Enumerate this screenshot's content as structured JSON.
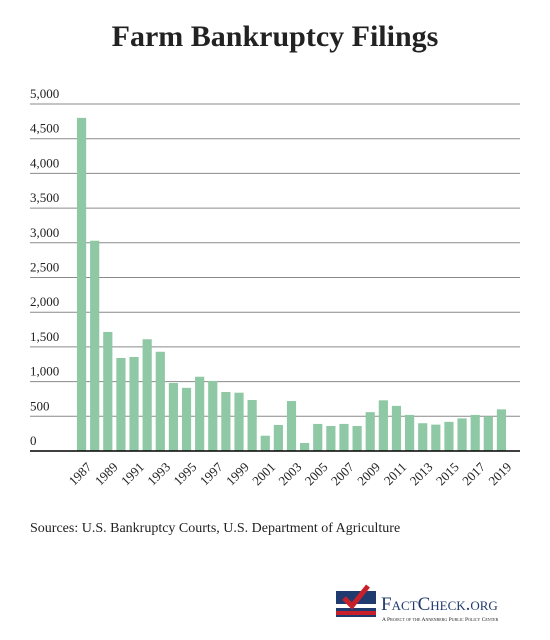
{
  "chart_data": {
    "type": "bar",
    "title": "Farm Bankruptcy Filings",
    "categories": [
      "1987",
      null,
      "1989",
      null,
      "1991",
      null,
      "1993",
      null,
      "1995",
      null,
      "1997",
      null,
      "1999",
      null,
      "2001",
      null,
      "2003",
      null,
      "2005",
      null,
      "2007",
      null,
      "2009",
      null,
      "2011",
      null,
      "2013",
      null,
      "2015",
      null,
      "2017",
      null,
      "2019"
    ],
    "values": [
      4800,
      3030,
      1715,
      1340,
      1355,
      1610,
      1430,
      980,
      910,
      1070,
      1010,
      850,
      840,
      735,
      220,
      375,
      720,
      115,
      390,
      360,
      390,
      360,
      560,
      730,
      650,
      520,
      400,
      380,
      420,
      470,
      520,
      500,
      600
    ],
    "color": "#8fc8a4",
    "ylim": [
      0,
      5000
    ],
    "yticks": [
      0,
      500,
      {
        "value": 1000,
        "label": "1,000"
      },
      {
        "value": 1500,
        "label": "1,500"
      },
      {
        "value": 2000,
        "label": "2,000"
      },
      {
        "value": 2500,
        "label": "2,500"
      },
      {
        "value": 3000,
        "label": "3,000"
      },
      {
        "value": 3500,
        "label": "3,500"
      },
      {
        "value": 4000,
        "label": "4,000"
      },
      {
        "value": 4500,
        "label": "4,500"
      },
      {
        "value": 5000,
        "label": "5,000"
      }
    ],
    "grid": true,
    "source": "Sources: U.S. Bankruptcy Courts, U.S. Department of Agriculture"
  },
  "logo": {
    "name": "FactCheck.org",
    "tagline": "A Project of the Annenberg Public Policy Center"
  }
}
